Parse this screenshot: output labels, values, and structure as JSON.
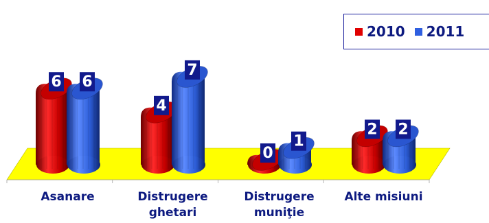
{
  "chart_data": {
    "type": "bar",
    "categories": [
      "Asanare",
      "Distrugere ghetari",
      "Distrugere muniţie",
      "Alte misiuni"
    ],
    "category_lines": [
      [
        "Asanare"
      ],
      [
        "Distrugere",
        "ghetari"
      ],
      [
        "Distrugere",
        "muniţie"
      ],
      [
        "Alte misiuni"
      ]
    ],
    "series": [
      {
        "name": "2010",
        "values": [
          6,
          4,
          0,
          2
        ],
        "color": "#e00000"
      },
      {
        "name": "2011",
        "values": [
          6,
          7,
          1,
          2
        ],
        "color": "#2f5fe0"
      }
    ],
    "ylim": [
      0,
      7
    ],
    "grid": false,
    "legend_position": "top-right",
    "floor_color": "#ffff00",
    "label_box_color": "#121a8c",
    "text_color": "#0d1a80"
  }
}
